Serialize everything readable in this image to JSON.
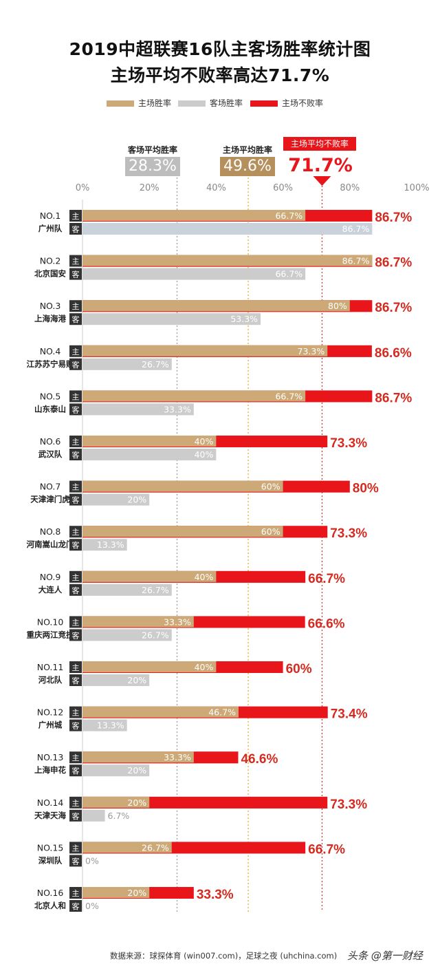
{
  "title_line1": "2019中超联赛16队主客场胜率统计图",
  "title_line2": "主场平均不败率高达71.7%",
  "legend": [
    {
      "label": "主场胜率",
      "color": "#cca977"
    },
    {
      "label": "客场胜率",
      "color": "#cccccc"
    },
    {
      "label": "主场不败率",
      "color": "#e8151a"
    }
  ],
  "averages": {
    "away_win_label": "客场平均胜率",
    "away_win_value": "28.3%",
    "away_win": 28.3,
    "home_win_label": "主场平均胜率",
    "home_win_value": "49.6%",
    "home_win": 49.6,
    "home_unbeaten_label": "主场平均不败率",
    "home_unbeaten_value": "71.7%",
    "home_unbeaten": 71.7
  },
  "home_tag": "主",
  "away_tag": "客",
  "source": "数据来源：球探体育 (win007.com)，足球之夜 (uhchina.com)",
  "watermark": "头条 @第一财经",
  "colors": {
    "home_win": "#cca977",
    "away_win": "#cccccc",
    "away_win_first": "#c9d2da",
    "home_unbeaten": "#e8151a",
    "unbeaten_label": "#d42a1f",
    "tag_bg": "#333333",
    "avg_away_line": "#999999",
    "avg_home_line": "#e8a020",
    "avg_unbeaten_line": "#d42a1f"
  },
  "chart_data": {
    "type": "bar",
    "xlim": [
      0,
      100
    ],
    "x_ticks": [
      "0%",
      "20%",
      "40%",
      "60%",
      "80%",
      "100%"
    ],
    "series_names": [
      "主场胜率",
      "客场胜率",
      "主场不败率"
    ],
    "teams": [
      {
        "rank": "NO.1",
        "name": "广州队",
        "home_win": 66.7,
        "home_win_label": "66.7%",
        "away_win": 86.7,
        "away_win_label": "86.7%",
        "home_unbeaten": 86.7,
        "home_unbeaten_label": "86.7%"
      },
      {
        "rank": "NO.2",
        "name": "北京国安",
        "home_win": 86.7,
        "home_win_label": "86.7%",
        "away_win": 66.7,
        "away_win_label": "66.7%",
        "home_unbeaten": 86.7,
        "home_unbeaten_label": "86.7%"
      },
      {
        "rank": "NO.3",
        "name": "上海海港",
        "home_win": 80,
        "home_win_label": "80%",
        "away_win": 53.3,
        "away_win_label": "53.3%",
        "home_unbeaten": 86.7,
        "home_unbeaten_label": "86.7%"
      },
      {
        "rank": "NO.4",
        "name": "江苏苏宁易购",
        "home_win": 73.3,
        "home_win_label": "73.3%",
        "away_win": 26.7,
        "away_win_label": "26.7%",
        "home_unbeaten": 86.6,
        "home_unbeaten_label": "86.6%"
      },
      {
        "rank": "NO.5",
        "name": "山东泰山",
        "home_win": 66.7,
        "home_win_label": "66.7%",
        "away_win": 33.3,
        "away_win_label": "33.3%",
        "home_unbeaten": 86.7,
        "home_unbeaten_label": "86.7%"
      },
      {
        "rank": "NO.6",
        "name": "武汉队",
        "home_win": 40,
        "home_win_label": "40%",
        "away_win": 40,
        "away_win_label": "40%",
        "home_unbeaten": 73.3,
        "home_unbeaten_label": "73.3%"
      },
      {
        "rank": "NO.7",
        "name": "天津津门虎",
        "home_win": 60,
        "home_win_label": "60%",
        "away_win": 20,
        "away_win_label": "20%",
        "home_unbeaten": 80,
        "home_unbeaten_label": "80%"
      },
      {
        "rank": "NO.8",
        "name": "河南嵩山龙门",
        "home_win": 60,
        "home_win_label": "60%",
        "away_win": 13.3,
        "away_win_label": "13.3%",
        "home_unbeaten": 73.3,
        "home_unbeaten_label": "73.3%"
      },
      {
        "rank": "NO.9",
        "name": "大连人",
        "home_win": 40,
        "home_win_label": "40%",
        "away_win": 26.7,
        "away_win_label": "26.7%",
        "home_unbeaten": 66.7,
        "home_unbeaten_label": "66.7%"
      },
      {
        "rank": "NO.10",
        "name": "重庆两江竞技",
        "home_win": 33.3,
        "home_win_label": "33.3%",
        "away_win": 26.7,
        "away_win_label": "26.7%",
        "home_unbeaten": 66.6,
        "home_unbeaten_label": "66.6%"
      },
      {
        "rank": "NO.11",
        "name": "河北队",
        "home_win": 40,
        "home_win_label": "40%",
        "away_win": 20,
        "away_win_label": "20%",
        "home_unbeaten": 60,
        "home_unbeaten_label": "60%"
      },
      {
        "rank": "NO.12",
        "name": "广州城",
        "home_win": 46.7,
        "home_win_label": "46.7%",
        "away_win": 13.3,
        "away_win_label": "13.3%",
        "home_unbeaten": 73.4,
        "home_unbeaten_label": "73.4%"
      },
      {
        "rank": "NO.13",
        "name": "上海申花",
        "home_win": 33.3,
        "home_win_label": "33.3%",
        "away_win": 20,
        "away_win_label": "20%",
        "home_unbeaten": 46.6,
        "home_unbeaten_label": "46.6%"
      },
      {
        "rank": "NO.14",
        "name": "天津天海",
        "home_win": 20,
        "home_win_label": "20%",
        "away_win": 6.7,
        "away_win_label": "6.7%",
        "home_unbeaten": 73.3,
        "home_unbeaten_label": "73.3%"
      },
      {
        "rank": "NO.15",
        "name": "深圳队",
        "home_win": 26.7,
        "home_win_label": "26.7%",
        "away_win": 0,
        "away_win_label": "0%",
        "home_unbeaten": 66.7,
        "home_unbeaten_label": "66.7%"
      },
      {
        "rank": "NO.16",
        "name": "北京人和",
        "home_win": 20,
        "home_win_label": "20%",
        "away_win": 0,
        "away_win_label": "0%",
        "home_unbeaten": 33.3,
        "home_unbeaten_label": "33.3%"
      }
    ]
  }
}
